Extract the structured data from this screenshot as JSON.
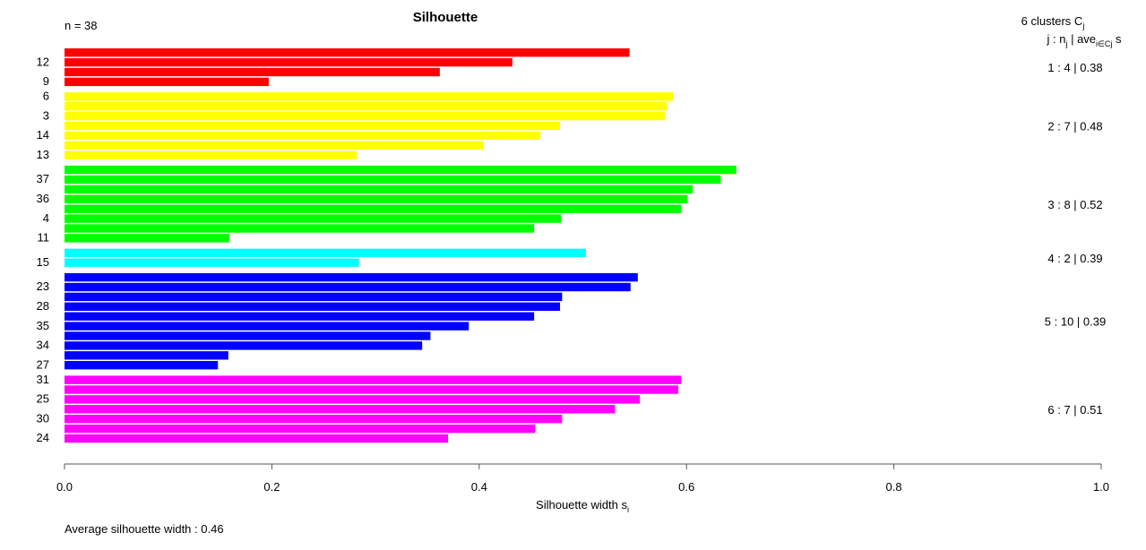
{
  "chart_data": {
    "type": "bar",
    "orientation": "horizontal",
    "title": "Silhouette",
    "n_label": "n = 38",
    "xlabel": "Silhouette width s",
    "xlabel_sub": "i",
    "xlim": [
      0.0,
      1.0
    ],
    "xticks": [
      "0.0",
      "0.2",
      "0.4",
      "0.6",
      "0.8",
      "1.0"
    ],
    "xtick_values": [
      0.0,
      0.2,
      0.4,
      0.6,
      0.8,
      1.0
    ],
    "legend": {
      "header": "6  clusters  C",
      "header_sub": "j",
      "subheader_prefix": "j :  n",
      "subheader_mid": " | ave",
      "subheader_sub": "i∈Cj",
      "subheader_suffix": "s"
    },
    "average_label": "Average silhouette width :  0.46",
    "clusters": [
      {
        "label": "1 :  4  |  0.38",
        "color": "#ff0000",
        "values": [
          0.545,
          0.432,
          0.362,
          0.197
        ],
        "row_labels": [
          "",
          "12",
          "",
          "9"
        ]
      },
      {
        "label": "2 :  7  |  0.48",
        "color": "#ffff00",
        "values": [
          0.587,
          0.581,
          0.579,
          0.478,
          0.459,
          0.404,
          0.282
        ],
        "row_labels": [
          "6",
          "",
          "3",
          "",
          "14",
          "",
          "13"
        ]
      },
      {
        "label": "3 :  8  |  0.52",
        "color": "#00ff00",
        "values": [
          0.648,
          0.633,
          0.606,
          0.601,
          0.595,
          0.479,
          0.453,
          0.159
        ],
        "row_labels": [
          "",
          "37",
          "",
          "36",
          "",
          "4",
          "",
          "11"
        ]
      },
      {
        "label": "4 :  2  |  0.39",
        "color": "#00ffff",
        "values": [
          0.503,
          0.284
        ],
        "row_labels": [
          "",
          "15"
        ]
      },
      {
        "label": "5 :  10  |  0.39",
        "color": "#0000ff",
        "values": [
          0.553,
          0.546,
          0.48,
          0.478,
          0.453,
          0.39,
          0.353,
          0.345,
          0.158,
          0.148
        ],
        "row_labels": [
          "",
          "23",
          "",
          "28",
          "",
          "35",
          "",
          "34",
          "",
          "27"
        ]
      },
      {
        "label": "6 :  7  |  0.51",
        "color": "#ff00ff",
        "values": [
          0.595,
          0.592,
          0.555,
          0.531,
          0.48,
          0.454,
          0.37
        ],
        "row_labels": [
          "31",
          "",
          "25",
          "",
          "30",
          "",
          "24"
        ]
      }
    ]
  }
}
